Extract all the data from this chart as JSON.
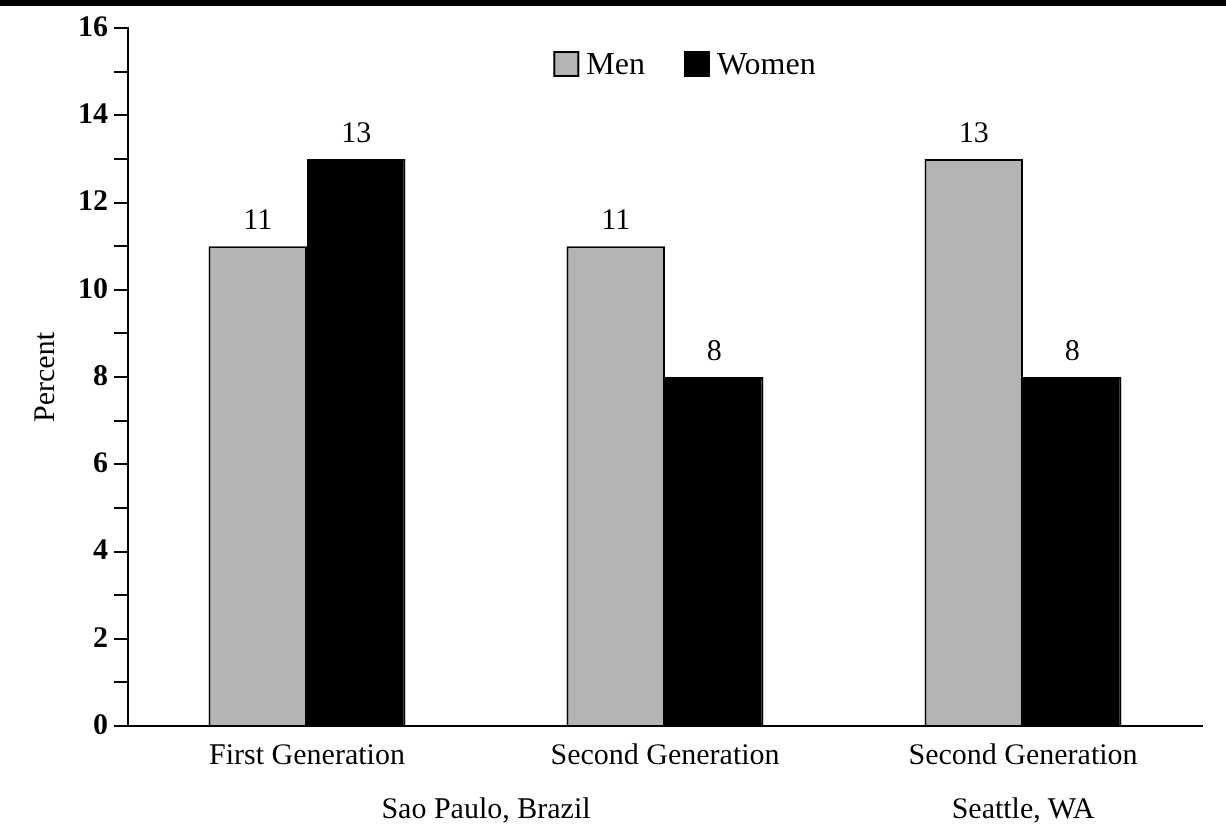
{
  "chart_data": {
    "type": "bar",
    "ylabel": "Percent",
    "categories": [
      "First Generation",
      "Second Generation",
      "Second Generation"
    ],
    "series": [
      {
        "name": "Men",
        "color": "#b3b3b3",
        "values": [
          11,
          11,
          13
        ]
      },
      {
        "name": "Women",
        "color": "#000000",
        "values": [
          13,
          8,
          8
        ]
      }
    ],
    "ylim": [
      0,
      16
    ],
    "yticks": [
      0,
      {
        "value": 1,
        "label": null
      },
      2,
      {
        "value": 3,
        "label": null
      },
      4,
      {
        "value": 5,
        "label": null
      },
      6,
      {
        "value": 7,
        "label": null
      },
      8,
      {
        "value": 9,
        "label": null
      },
      10,
      {
        "value": 11,
        "label": null
      },
      12,
      {
        "value": 13,
        "label": null
      },
      14,
      {
        "value": 15,
        "label": null
      },
      16
    ],
    "data_labels": true,
    "legend": "top",
    "grid": false,
    "annotations": [
      "Sao Paulo, Brazil",
      "Seattle, WA"
    ]
  }
}
